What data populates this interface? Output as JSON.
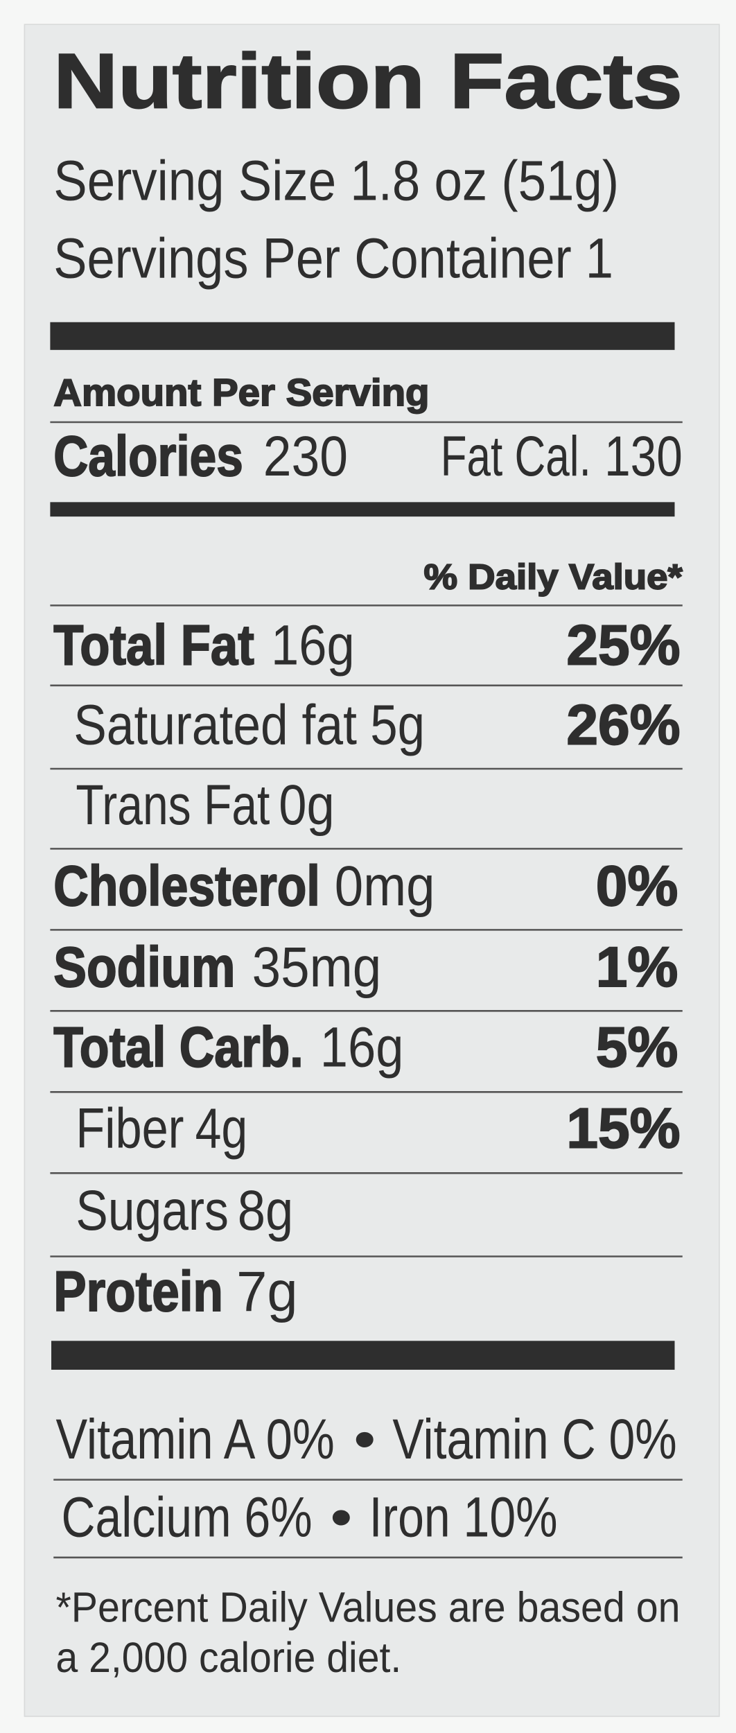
{
  "header": {
    "title": "Nutrition Facts",
    "serving_size": "Serving Size 1.8 oz (51g)",
    "servings_per_container": "Servings Per Container 1"
  },
  "amount_per_serving": "Amount Per Serving",
  "calories": {
    "label": "Calories",
    "value": "230"
  },
  "fat_calories": {
    "label": "Fat Cal.",
    "value": "130"
  },
  "daily_value_header": "% Daily Value*",
  "rows": [
    {
      "name": "Total Fat",
      "amount": "16g",
      "dv": "25%"
    },
    {
      "name": "Saturated fat",
      "amount": "5g",
      "dv": "26%"
    },
    {
      "name": "Trans Fat",
      "amount": "0g"
    },
    {
      "name": "Cholesterol",
      "amount": "0mg",
      "dv": "0%"
    },
    {
      "name": "Sodium",
      "amount": "35mg",
      "dv": "1%"
    },
    {
      "name": "Total Carb.",
      "amount": "16g",
      "dv": "5%"
    },
    {
      "name": "Fiber",
      "amount": "4g",
      "dv": "15%"
    },
    {
      "name": "Sugars",
      "amount": "8g"
    },
    {
      "name": "Protein",
      "amount": "7g"
    }
  ],
  "vitamins": [
    [
      "Vitamin A 0%",
      "•",
      "Vitamin C 0%"
    ],
    [
      "Calcium 6%",
      "•",
      "Iron 10%"
    ]
  ],
  "footnote": [
    "*Percent Daily Values are based on",
    "a 2,000 calorie diet."
  ]
}
